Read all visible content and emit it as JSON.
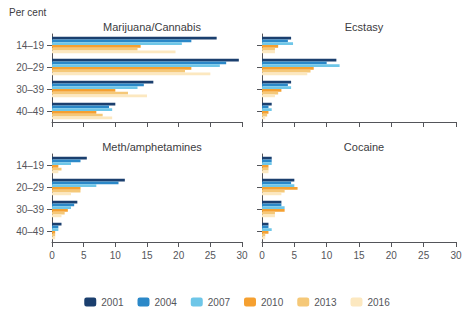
{
  "chart_data": [
    {
      "type": "bar",
      "orientation": "horizontal",
      "title": "Marijuana/Cannabis",
      "xlabel": "Per cent",
      "categories": [
        "14–19",
        "20–29",
        "30–39",
        "40–49"
      ],
      "series": [
        {
          "name": "2001",
          "color": "#1b3f6e",
          "values": [
            26.0,
            29.5,
            16.0,
            10.0
          ]
        },
        {
          "name": "2004",
          "color": "#2b88c8",
          "values": [
            22.0,
            27.5,
            14.5,
            9.0
          ]
        },
        {
          "name": "2007",
          "color": "#6ec6e8",
          "values": [
            20.5,
            26.5,
            13.5,
            9.5
          ]
        },
        {
          "name": "2010",
          "color": "#f5a030",
          "values": [
            14.0,
            22.0,
            10.0,
            7.0
          ]
        },
        {
          "name": "2013",
          "color": "#f5c878",
          "values": [
            13.5,
            21.0,
            12.0,
            8.0
          ]
        },
        {
          "name": "2016",
          "color": "#fce8c0",
          "values": [
            19.5,
            25.0,
            15.0,
            9.5
          ]
        }
      ],
      "xlim": [
        0,
        30
      ],
      "xticks": [
        0,
        5,
        10,
        15,
        20,
        25,
        30
      ],
      "grid": false,
      "legend": "bottom",
      "tick_labels": "y"
    },
    {
      "type": "bar",
      "orientation": "horizontal",
      "title": "Ecstasy",
      "categories": [
        "14–19",
        "20–29",
        "30–39",
        "40–49"
      ],
      "series": [
        {
          "name": "2001",
          "color": "#1b3f6e",
          "values": [
            4.5,
            11.5,
            4.5,
            1.5
          ]
        },
        {
          "name": "2004",
          "color": "#2b88c8",
          "values": [
            4.0,
            10.0,
            4.0,
            1.0
          ]
        },
        {
          "name": "2007",
          "color": "#6ec6e8",
          "values": [
            4.8,
            12.0,
            4.5,
            1.5
          ]
        },
        {
          "name": "2010",
          "color": "#f5a030",
          "values": [
            2.5,
            8.0,
            3.0,
            1.0
          ]
        },
        {
          "name": "2013",
          "color": "#f5c878",
          "values": [
            2.0,
            7.5,
            2.5,
            0.8
          ]
        },
        {
          "name": "2016",
          "color": "#fce8c0",
          "values": [
            2.0,
            7.0,
            2.0,
            0.5
          ]
        }
      ],
      "xlim": [
        0,
        30
      ],
      "xticks": [
        0,
        5,
        10,
        15,
        20,
        25,
        30
      ],
      "grid": false,
      "tick_labels": false
    },
    {
      "type": "bar",
      "orientation": "horizontal",
      "title": "Meth/amphetamines",
      "categories": [
        "14–19",
        "20–29",
        "30–39",
        "40–49"
      ],
      "series": [
        {
          "name": "2001",
          "color": "#1b3f6e",
          "values": [
            5.5,
            11.5,
            4.0,
            1.5
          ]
        },
        {
          "name": "2004",
          "color": "#2b88c8",
          "values": [
            4.5,
            10.5,
            3.5,
            1.0
          ]
        },
        {
          "name": "2007",
          "color": "#6ec6e8",
          "values": [
            3.0,
            7.0,
            3.0,
            1.0
          ]
        },
        {
          "name": "2010",
          "color": "#f5a030",
          "values": [
            1.0,
            4.5,
            2.5,
            0.5
          ]
        },
        {
          "name": "2013",
          "color": "#f5c878",
          "values": [
            1.5,
            4.5,
            2.0,
            0.5
          ]
        },
        {
          "name": "2016",
          "color": "#fce8c0",
          "values": [
            1.0,
            3.0,
            1.5,
            0.5
          ]
        }
      ],
      "xlim": [
        0,
        30
      ],
      "xticks": [
        0,
        5,
        10,
        15,
        20,
        25,
        30
      ],
      "grid": false
    },
    {
      "type": "bar",
      "orientation": "horizontal",
      "title": "Cocaine",
      "categories": [
        "14–19",
        "20–29",
        "30–39",
        "40–49"
      ],
      "series": [
        {
          "name": "2001",
          "color": "#1b3f6e",
          "values": [
            1.5,
            5.0,
            3.0,
            1.0
          ]
        },
        {
          "name": "2004",
          "color": "#2b88c8",
          "values": [
            1.5,
            4.5,
            3.0,
            1.0
          ]
        },
        {
          "name": "2007",
          "color": "#6ec6e8",
          "values": [
            1.5,
            5.0,
            3.5,
            1.5
          ]
        },
        {
          "name": "2010",
          "color": "#f5a030",
          "values": [
            1.0,
            5.5,
            3.5,
            1.0
          ]
        },
        {
          "name": "2013",
          "color": "#f5c878",
          "values": [
            1.0,
            3.5,
            2.0,
            0.5
          ]
        },
        {
          "name": "2016",
          "color": "#fce8c0",
          "values": [
            1.0,
            3.0,
            2.0,
            0.5
          ]
        }
      ],
      "xlim": [
        0,
        30
      ],
      "xticks": [
        0,
        5,
        10,
        15,
        20,
        25,
        30
      ],
      "grid": false,
      "tick_labels": "x"
    }
  ]
}
